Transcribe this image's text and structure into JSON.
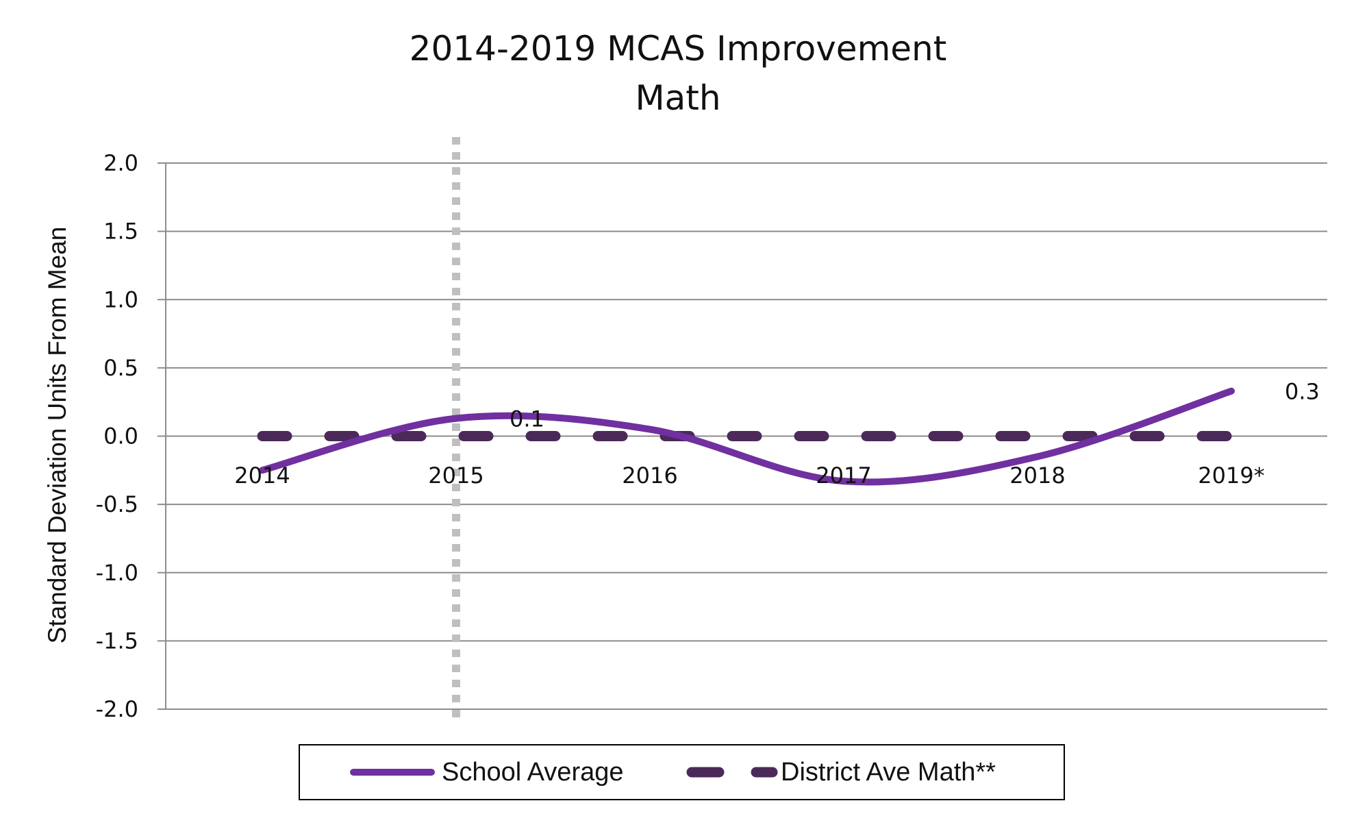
{
  "chart_data": {
    "type": "line",
    "title": "2014-2019 MCAS Improvement",
    "subtitle": "Math",
    "ylabel": "Standard Deviation Units From Mean",
    "xlabel": "",
    "categories": [
      "2014",
      "2015",
      "2016",
      "2017",
      "2018",
      "2019*"
    ],
    "ylim": [
      -2.0,
      2.0
    ],
    "yticks": [
      "2.0",
      "1.5",
      "1.0",
      "0.5",
      "0.0",
      "-0.5",
      "-1.0",
      "-1.5",
      "-2.0"
    ],
    "grid": true,
    "legend_position": "bottom",
    "series": [
      {
        "name": "School Average",
        "values": [
          -0.25,
          0.13,
          0.05,
          -0.33,
          -0.15,
          0.33
        ],
        "color": "#7030A0",
        "style": "solid-smooth"
      },
      {
        "name": "District Ave Math**",
        "values": [
          0.0,
          0.0,
          0.0,
          0.0,
          0.0,
          0.0
        ],
        "color": "#4B2A5A",
        "style": "dashed"
      }
    ],
    "data_labels": [
      {
        "series": "School Average",
        "category": "2015",
        "text": "0.1"
      },
      {
        "series": "School Average",
        "category": "2019*",
        "text": "0.3"
      }
    ],
    "reference_line": {
      "category": "2015",
      "color": "#BFBFBF",
      "style": "dotted"
    }
  }
}
